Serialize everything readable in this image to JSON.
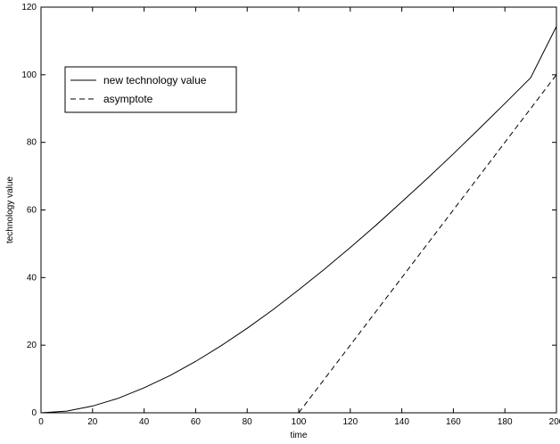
{
  "chart_data": {
    "type": "line",
    "title": "",
    "xlabel": "time",
    "ylabel": "technology value",
    "xlim": [
      0,
      200
    ],
    "ylim": [
      0,
      120
    ],
    "xticks": [
      0,
      20,
      40,
      60,
      80,
      100,
      120,
      140,
      160,
      180,
      200
    ],
    "yticks": [
      0,
      20,
      40,
      60,
      80,
      100,
      120
    ],
    "xtick_labels": [
      "0",
      "20",
      "40",
      "60",
      "80",
      "100",
      "120",
      "140",
      "160",
      "180",
      "200"
    ],
    "ytick_labels": [
      "0",
      "20",
      "40",
      "60",
      "80",
      "100",
      "120"
    ],
    "grid": false,
    "legend": {
      "placement": "top-left",
      "entries": [
        "new technology value",
        "asymptote"
      ]
    },
    "series": [
      {
        "name": "new technology value",
        "style": "solid",
        "color": "#000000",
        "x": [
          0,
          10,
          20,
          30,
          40,
          50,
          60,
          70,
          80,
          90,
          100,
          110,
          120,
          130,
          140,
          150,
          160,
          170,
          180,
          190,
          200
        ],
        "y": [
          0,
          0.5,
          2.0,
          4.3,
          7.4,
          11.0,
          15.2,
          19.9,
          25.0,
          30.5,
          36.4,
          42.5,
          48.9,
          55.5,
          62.4,
          69.4,
          76.6,
          84.0,
          91.5,
          99.1,
          114.3
        ]
      },
      {
        "name": "asymptote",
        "style": "dashed",
        "color": "#000000",
        "x": [
          100,
          200
        ],
        "y": [
          0,
          100
        ]
      }
    ]
  }
}
